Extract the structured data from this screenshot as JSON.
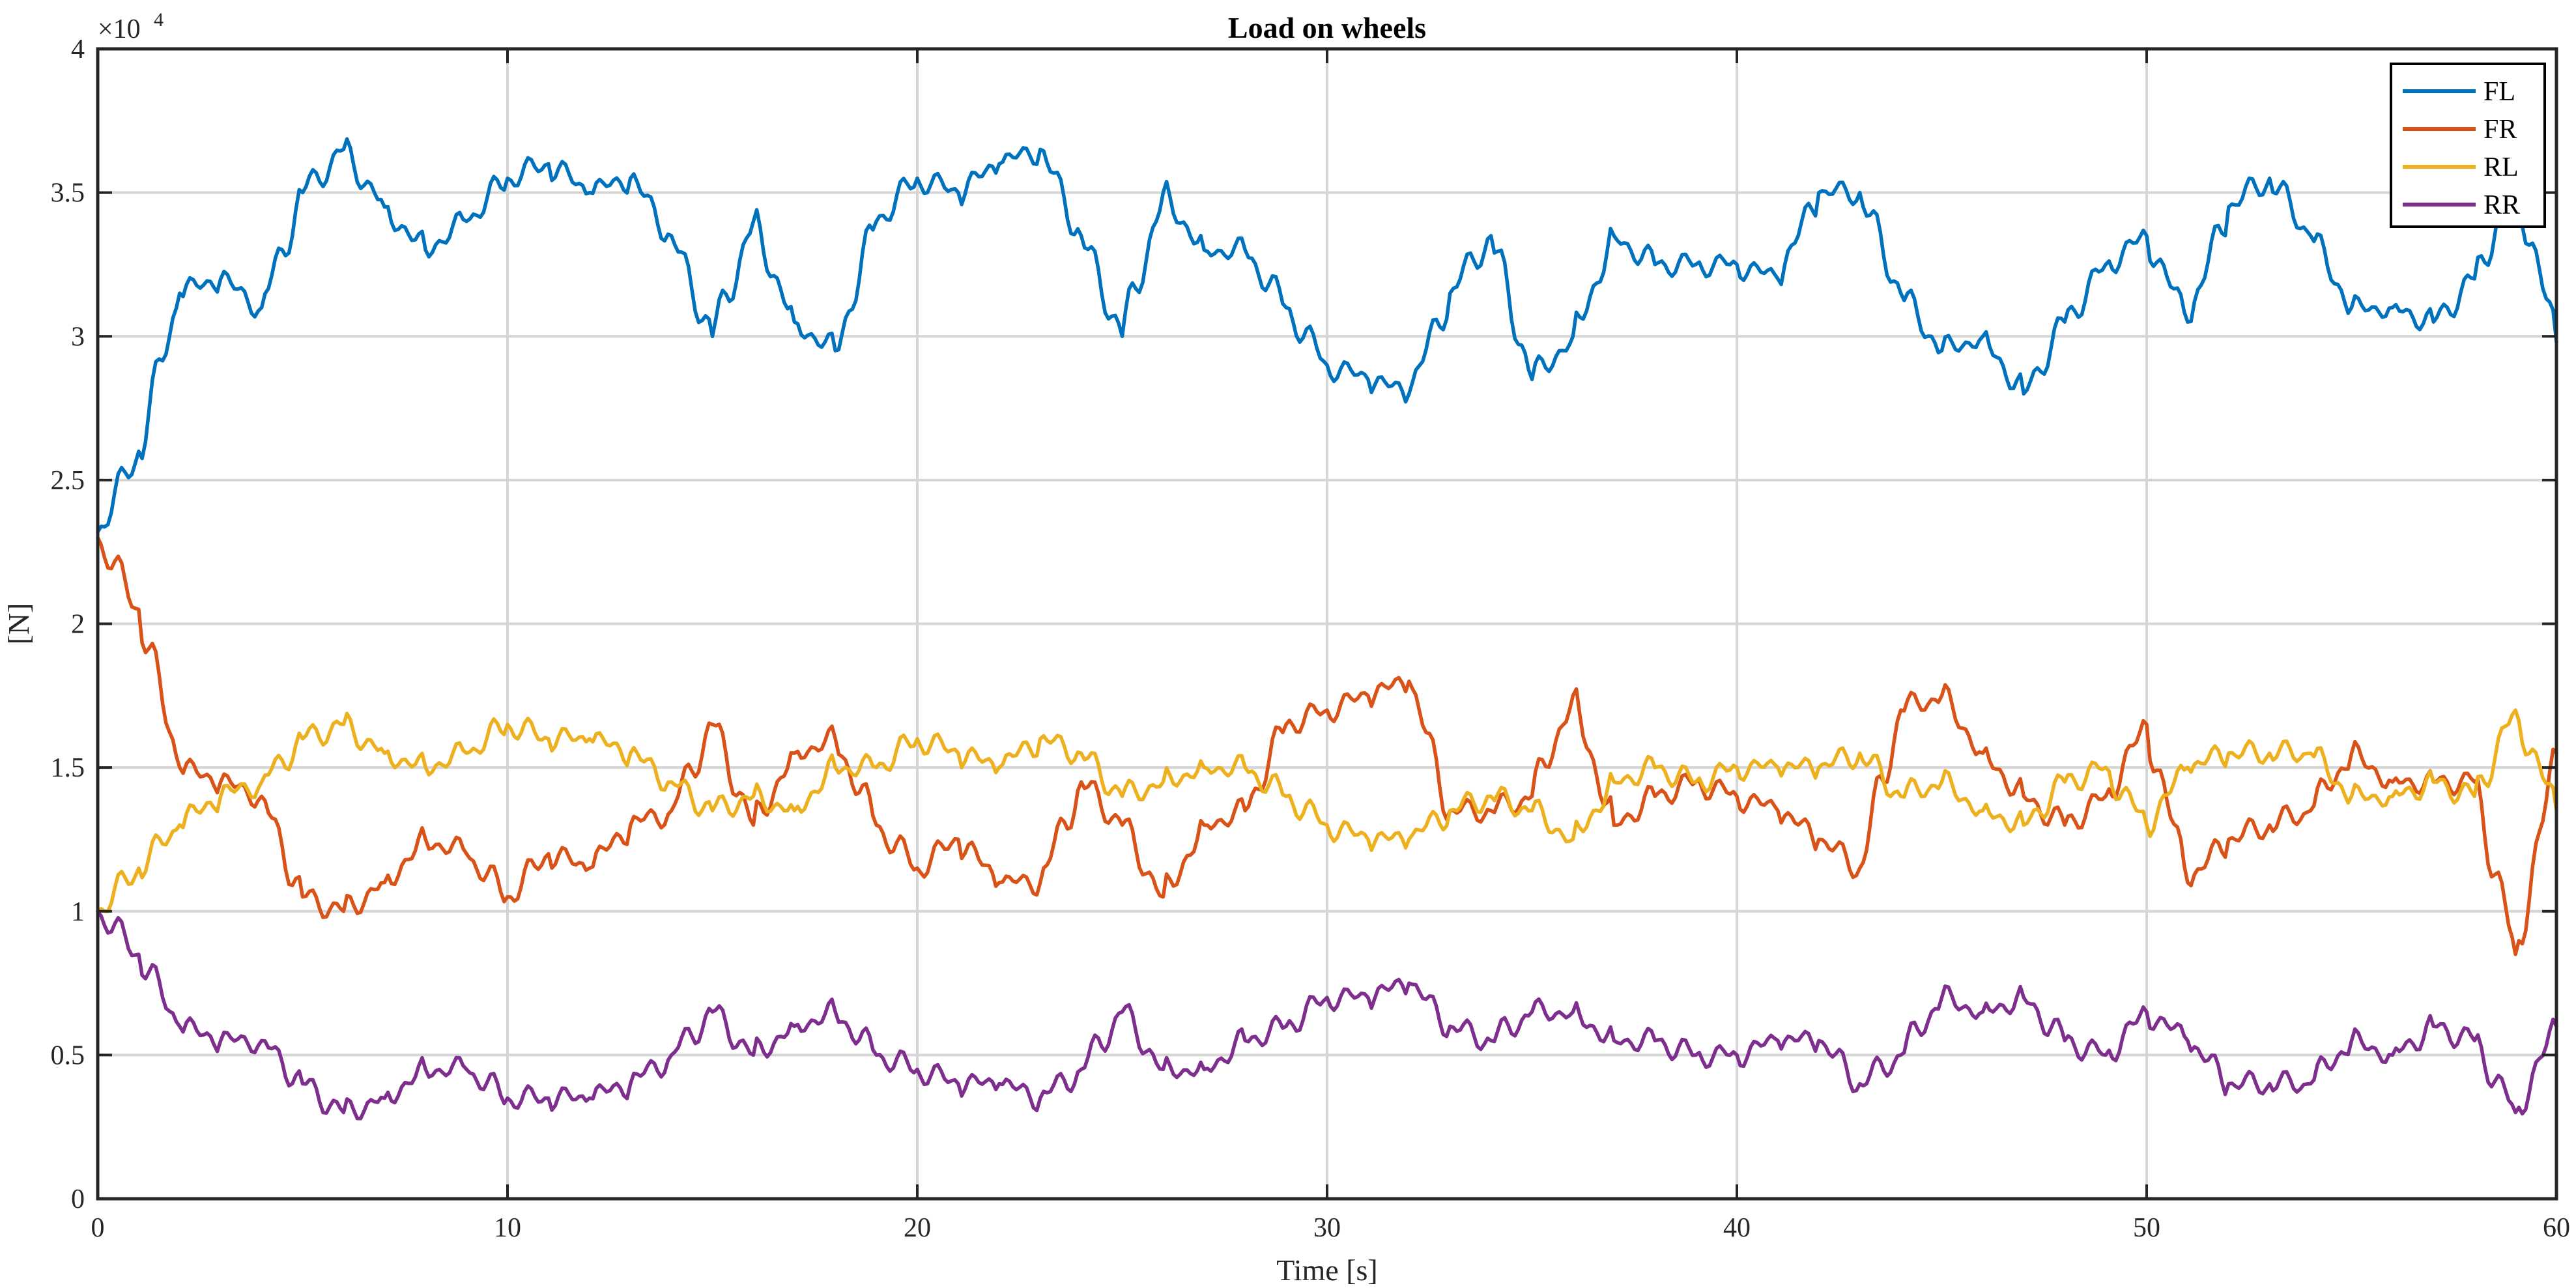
{
  "chart_data": {
    "type": "line",
    "title": "Load on wheels",
    "xlabel": "Time [s]",
    "ylabel": "[N]",
    "y_exponent_label": "×10",
    "y_exponent_power": "4",
    "xlim": [
      0,
      60
    ],
    "ylim": [
      0,
      40000
    ],
    "x_ticks": [
      0,
      10,
      20,
      30,
      40,
      50,
      60
    ],
    "x_tick_labels": [
      "0",
      "10",
      "20",
      "30",
      "40",
      "50",
      "60"
    ],
    "y_ticks": [
      0,
      5000,
      10000,
      15000,
      20000,
      25000,
      30000,
      35000,
      40000
    ],
    "y_tick_labels": [
      "0",
      "0.5",
      "1",
      "1.5",
      "2",
      "2.5",
      "3",
      "3.5",
      "4"
    ],
    "grid": true,
    "legend_position": "top-right",
    "series": [
      {
        "name": "FL",
        "color": "#0072BD",
        "x": [
          0,
          1,
          2,
          3,
          4,
          5,
          6,
          7,
          8,
          9,
          10,
          11,
          12,
          13,
          14,
          15,
          16,
          17,
          18,
          19,
          20,
          21,
          22,
          23,
          24,
          25,
          26,
          27,
          28,
          29,
          30,
          31,
          32,
          33,
          34,
          35,
          36,
          37,
          38,
          39,
          40,
          41,
          42,
          43,
          44,
          45,
          46,
          47,
          48,
          49,
          50,
          51,
          52,
          53,
          54,
          55,
          56,
          57,
          58,
          59,
          60
        ],
        "y": [
          23200,
          26000,
          31500,
          32000,
          31000,
          35000,
          36500,
          34500,
          33000,
          34000,
          35500,
          36000,
          35000,
          35500,
          33500,
          30000,
          34000,
          30500,
          29500,
          34000,
          35500,
          35000,
          36000,
          36500,
          33500,
          30000,
          35000,
          33000,
          33000,
          31000,
          29000,
          28500,
          28000,
          31500,
          33500,
          28500,
          30000,
          33500,
          32500,
          32500,
          32500,
          32000,
          35000,
          35000,
          31500,
          29500,
          30000,
          28000,
          30500,
          32500,
          33500,
          30500,
          34500,
          35500,
          33500,
          31000,
          31000,
          30500,
          32000,
          35500,
          29800
        ]
      },
      {
        "name": "FR",
        "color": "#D95319",
        "x": [
          0,
          1,
          2,
          3,
          4,
          5,
          6,
          7,
          8,
          9,
          10,
          11,
          12,
          13,
          14,
          15,
          16,
          17,
          18,
          19,
          20,
          21,
          22,
          23,
          24,
          25,
          26,
          27,
          28,
          29,
          30,
          31,
          32,
          33,
          34,
          35,
          36,
          37,
          38,
          39,
          40,
          41,
          42,
          43,
          44,
          45,
          46,
          47,
          48,
          49,
          50,
          51,
          52,
          53,
          54,
          55,
          56,
          57,
          58,
          59,
          60
        ],
        "y": [
          23000,
          20500,
          15000,
          14500,
          14000,
          10500,
          10000,
          11000,
          12500,
          12000,
          10500,
          12000,
          11500,
          13000,
          13500,
          16500,
          13000,
          15500,
          16000,
          13000,
          11500,
          12500,
          11000,
          11000,
          14500,
          13000,
          10500,
          13000,
          13500,
          16500,
          17000,
          17500,
          18000,
          13500,
          13500,
          14000,
          17500,
          13000,
          14000,
          14500,
          14000,
          13500,
          12500,
          11500,
          17000,
          17500,
          15500,
          14000,
          13000,
          14000,
          16500,
          11000,
          12500,
          13000,
          13500,
          15500,
          14500,
          14500,
          14500,
          8500,
          15500
        ]
      },
      {
        "name": "RL",
        "color": "#EDB120",
        "x": [
          0,
          1,
          2,
          3,
          4,
          5,
          6,
          7,
          8,
          9,
          10,
          11,
          12,
          13,
          14,
          15,
          16,
          17,
          18,
          19,
          20,
          21,
          22,
          23,
          24,
          25,
          26,
          27,
          28,
          29,
          30,
          31,
          32,
          33,
          34,
          35,
          36,
          37,
          38,
          39,
          40,
          41,
          42,
          43,
          44,
          45,
          46,
          47,
          48,
          49,
          50,
          51,
          52,
          53,
          54,
          55,
          56,
          57,
          58,
          59,
          60
        ],
        "y": [
          10000,
          11500,
          13000,
          14000,
          14500,
          16000,
          16500,
          15500,
          15000,
          15500,
          16500,
          16000,
          16000,
          15500,
          14500,
          13500,
          14000,
          13500,
          15000,
          15000,
          16000,
          15500,
          15000,
          16000,
          15500,
          14000,
          14500,
          15000,
          15000,
          14000,
          13000,
          12500,
          12500,
          13500,
          14000,
          13500,
          12500,
          14500,
          15000,
          14500,
          15000,
          15000,
          15000,
          15500,
          14000,
          14500,
          13500,
          13000,
          14500,
          15000,
          13000,
          15000,
          15500,
          15500,
          15500,
          14000,
          14000,
          14500,
          14000,
          17000,
          13500
        ]
      },
      {
        "name": "RR",
        "color": "#7E2F8E",
        "x": [
          0,
          1,
          2,
          3,
          4,
          5,
          6,
          7,
          8,
          9,
          10,
          11,
          12,
          13,
          14,
          15,
          16,
          17,
          18,
          19,
          20,
          21,
          22,
          23,
          24,
          25,
          26,
          27,
          28,
          29,
          30,
          31,
          32,
          33,
          34,
          35,
          36,
          37,
          38,
          39,
          40,
          41,
          42,
          43,
          44,
          45,
          46,
          47,
          48,
          49,
          50,
          51,
          52,
          53,
          54,
          55,
          56,
          57,
          58,
          59,
          60
        ],
        "y": [
          10000,
          8500,
          6000,
          5500,
          5500,
          4000,
          3000,
          3500,
          4500,
          4500,
          3500,
          3500,
          3500,
          4000,
          5000,
          6500,
          5000,
          6000,
          6500,
          5000,
          4500,
          4000,
          4000,
          3500,
          4500,
          6500,
          4500,
          4500,
          5500,
          6000,
          7000,
          7000,
          7500,
          6000,
          5500,
          6500,
          6500,
          5500,
          5500,
          5000,
          5000,
          5500,
          5500,
          4000,
          5000,
          7000,
          6500,
          7000,
          5500,
          5000,
          6500,
          5500,
          4000,
          4000,
          4000,
          5500,
          5000,
          6000,
          5500,
          3000,
          6000
        ]
      }
    ]
  }
}
